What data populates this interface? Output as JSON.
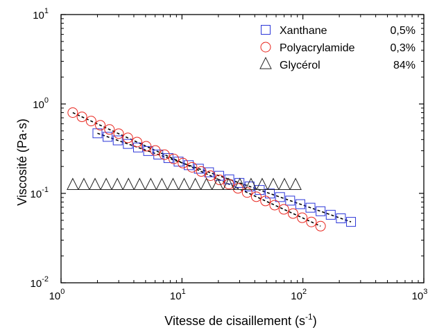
{
  "chart_data": {
    "type": "scatter",
    "xscale": "log",
    "yscale": "log",
    "xlim": [
      1,
      1000
    ],
    "ylim": [
      0.01,
      10
    ],
    "xlabel": "Vitesse de cisaillement (s",
    "xlabel_sup": "-1",
    "xlabel_end": ")",
    "ylabel": "Viscosité (Pa·s)",
    "x_ticks": [
      {
        "value": 1,
        "base": "10",
        "exp": "0"
      },
      {
        "value": 10,
        "base": "10",
        "exp": "1"
      },
      {
        "value": 100,
        "base": "10",
        "exp": "2"
      },
      {
        "value": 1000,
        "base": "10",
        "exp": "3"
      }
    ],
    "y_ticks": [
      {
        "value": 0.01,
        "base": "10",
        "exp": "-2"
      },
      {
        "value": 0.1,
        "base": "10",
        "exp": "-1"
      },
      {
        "value": 1,
        "base": "10",
        "exp": "0"
      },
      {
        "value": 10,
        "base": "10",
        "exp": "1"
      }
    ],
    "grid": false,
    "legend_position": "top-right",
    "series": [
      {
        "name": "Xanthane",
        "concentration": "0,5%",
        "marker": "square",
        "color": "#2a35d8",
        "fit_line": true,
        "x_start": 2.0,
        "x_end": 250,
        "y_start": 0.47,
        "y_end": 0.048,
        "count": 26
      },
      {
        "name": "Polyacrylamide",
        "concentration": "0,3%",
        "marker": "circle",
        "color": "#e8241c",
        "fit_line": true,
        "x_start": 1.25,
        "x_end": 140,
        "y_start": 0.8,
        "y_end": 0.043,
        "count": 28
      },
      {
        "name": "Glycérol",
        "concentration": "84%",
        "marker": "triangle",
        "color": "#222222",
        "fit_line": false,
        "x_start": 1.25,
        "x_end": 87,
        "y_start": 0.123,
        "y_end": 0.123,
        "count": 21
      }
    ]
  }
}
